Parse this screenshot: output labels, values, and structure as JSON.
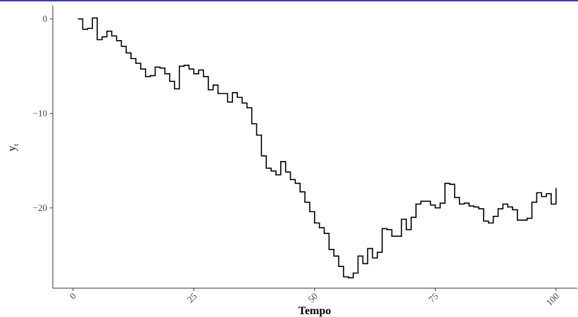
{
  "chart_data": {
    "type": "step",
    "x_label": "Tempo",
    "y_label": "y",
    "y_label_subscript": "t",
    "color": "#000000",
    "xlim": [
      -4.2,
      104.4
    ],
    "xticks": [
      0,
      25,
      50,
      75,
      100
    ],
    "ylim": [
      -28.5,
      1.26
    ],
    "yticks": [
      0,
      {
        "value": -10,
        "label": "−10"
      },
      {
        "value": -20,
        "label": "−20"
      }
    ],
    "x": [
      1,
      2,
      3,
      4,
      5,
      6,
      7,
      8,
      9,
      10,
      11,
      12,
      13,
      14,
      15,
      16,
      17,
      18,
      19,
      20,
      21,
      22,
      23,
      24,
      25,
      26,
      27,
      28,
      29,
      30,
      31,
      32,
      33,
      34,
      35,
      36,
      37,
      38,
      39,
      40,
      41,
      42,
      43,
      44,
      45,
      46,
      47,
      48,
      49,
      50,
      51,
      52,
      53,
      54,
      55,
      56,
      57,
      58,
      59,
      60,
      61,
      62,
      63,
      64,
      65,
      66,
      67,
      68,
      69,
      70,
      71,
      72,
      73,
      74,
      75,
      76,
      77,
      78,
      79,
      80,
      81,
      82,
      83,
      84,
      85,
      86,
      87,
      88,
      89,
      90,
      91,
      92,
      93,
      94,
      95,
      96,
      97,
      98,
      99,
      100
    ],
    "values": [
      0,
      -1.1,
      -1.0,
      0.1,
      -2.2,
      -1.9,
      -1.3,
      -1.8,
      -2.3,
      -2.9,
      -3.6,
      -4.2,
      -4.7,
      -5.3,
      -6.1,
      -6.0,
      -5.1,
      -5.2,
      -5.8,
      -6.6,
      -7.4,
      -5.0,
      -4.9,
      -5.3,
      -5.8,
      -5.4,
      -6.1,
      -7.5,
      -7.0,
      -7.9,
      -7.9,
      -8.8,
      -7.8,
      -8.3,
      -8.9,
      -9.4,
      -11.1,
      -12.3,
      -14.5,
      -15.8,
      -16.1,
      -16.5,
      -15.1,
      -16.2,
      -17.0,
      -17.4,
      -18.3,
      -19.4,
      -20.4,
      -21.6,
      -22.1,
      -22.7,
      -24.4,
      -25.1,
      -26.2,
      -27.3,
      -27.4,
      -26.9,
      -25.1,
      -25.9,
      -24.3,
      -25.3,
      -24.7,
      -22.2,
      -22.3,
      -23.0,
      -23.0,
      -21.2,
      -22.3,
      -21.0,
      -19.6,
      -19.3,
      -19.3,
      -19.7,
      -20.0,
      -19.5,
      -17.4,
      -17.5,
      -18.9,
      -19.6,
      -19.5,
      -19.8,
      -19.9,
      -20.1,
      -21.4,
      -21.6,
      -20.9,
      -20.1,
      -19.6,
      -19.9,
      -20.2,
      -21.3,
      -21.3,
      -21.1,
      -19.4,
      -18.4,
      -18.8,
      -18.5,
      -19.6,
      -17.9
    ]
  }
}
